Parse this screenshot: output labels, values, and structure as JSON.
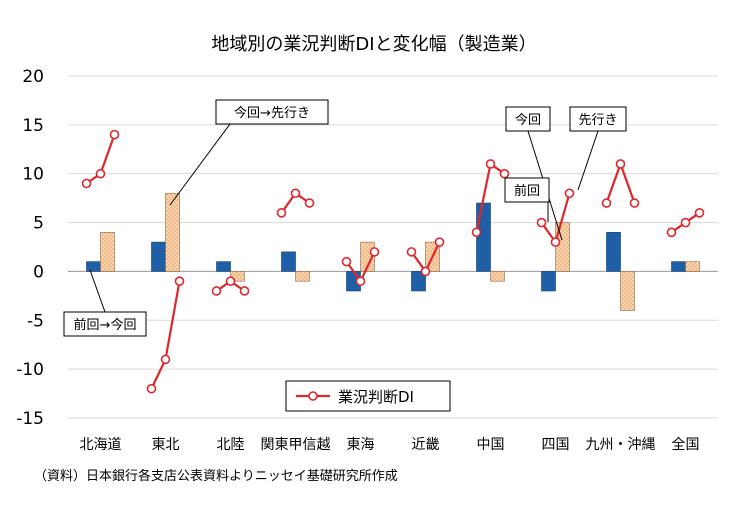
{
  "chart_data": {
    "type": "bar",
    "title": "地域別の業況判断DIと変化幅（製造業）",
    "categories": [
      "北海道",
      "東北",
      "北陸",
      "関東甲信越",
      "東海",
      "近畿",
      "中国",
      "四国",
      "九州・沖縄",
      "全国"
    ],
    "ylim": [
      -15,
      20
    ],
    "yticks": [
      20,
      15,
      10,
      5,
      0,
      -5,
      -10,
      -15
    ],
    "grid": true,
    "series": [
      {
        "name": "前回→今回",
        "kind": "bar",
        "color": "#1f5fa8",
        "values": [
          1,
          3,
          1,
          2,
          -2,
          -2,
          7,
          -2,
          4,
          1
        ]
      },
      {
        "name": "今回→先行き",
        "kind": "bar",
        "color": "#f5c9a0",
        "values": [
          4,
          8,
          -1,
          -1,
          3,
          3,
          -1,
          5,
          -4,
          1
        ]
      },
      {
        "name": "業況判断DI",
        "kind": "line",
        "color": "#e0262b",
        "points": [
          [
            9,
            10,
            14
          ],
          [
            -12,
            -9,
            -1
          ],
          [
            -2,
            -1,
            -2
          ],
          [
            6,
            8,
            7
          ],
          [
            1,
            -1,
            2
          ],
          [
            2,
            0,
            3
          ],
          [
            4,
            11,
            10
          ],
          [
            5,
            3,
            8
          ],
          [
            7,
            11,
            7
          ],
          [
            4,
            5,
            6
          ]
        ]
      }
    ],
    "legend": {
      "label": "業況判断DI",
      "position": "bottom-center"
    },
    "annotations": {
      "prev_to_now": "前回→今回",
      "now_to_next": "今回→先行き",
      "now": "今回",
      "next": "先行き",
      "prev": "前回"
    },
    "source_note": "（資料）日本銀行各支店公表資料よりニッセイ基礎研究所作成"
  }
}
